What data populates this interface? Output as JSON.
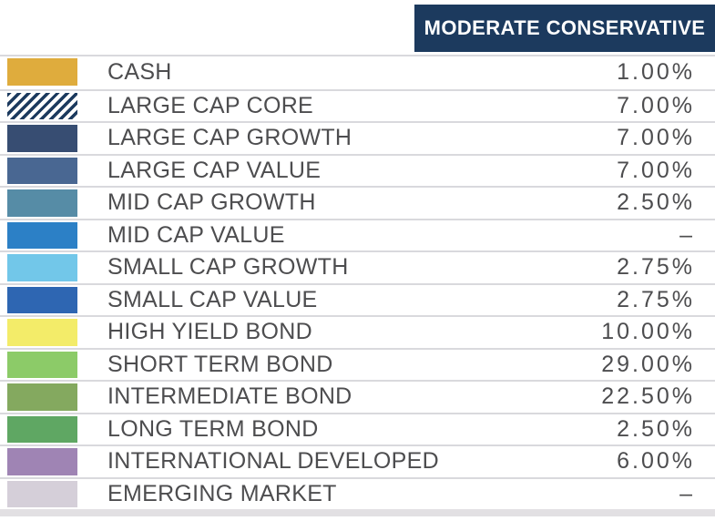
{
  "header": {
    "column_label": "MODERATE CONSERVATIVE"
  },
  "colors": {
    "header_bg": "#1C3A5E",
    "header_text": "#FFFFFF",
    "row_text": "#4D4D4F",
    "separator": "#D9D9DD",
    "bottom_band": "#E2E0E3",
    "hatch_bg": "#FFFFFF"
  },
  "rows": [
    {
      "label": "CASH",
      "value": "1.00%",
      "swatch": {
        "type": "solid",
        "color": "#DFAC3D",
        "name": "gold"
      }
    },
    {
      "label": "LARGE CAP CORE",
      "value": "7.00%",
      "swatch": {
        "type": "hatch",
        "color": "#1C3A5E",
        "name": "navy-diagonal-stripes"
      }
    },
    {
      "label": "LARGE CAP GROWTH",
      "value": "7.00%",
      "swatch": {
        "type": "solid",
        "color": "#374D72",
        "name": "dark-navy"
      }
    },
    {
      "label": "LARGE CAP VALUE",
      "value": "7.00%",
      "swatch": {
        "type": "solid",
        "color": "#496792",
        "name": "slate-blue"
      }
    },
    {
      "label": "MID CAP GROWTH",
      "value": "2.50%",
      "swatch": {
        "type": "solid",
        "color": "#568CA6",
        "name": "steel-blue"
      }
    },
    {
      "label": "MID CAP VALUE",
      "value": "–",
      "swatch": {
        "type": "solid",
        "color": "#2C80C6",
        "name": "bright-blue"
      }
    },
    {
      "label": "SMALL CAP GROWTH",
      "value": "2.75%",
      "swatch": {
        "type": "solid",
        "color": "#72C7E9",
        "name": "sky-blue"
      }
    },
    {
      "label": "SMALL CAP VALUE",
      "value": "2.75%",
      "swatch": {
        "type": "solid",
        "color": "#2E66B2",
        "name": "medium-blue"
      }
    },
    {
      "label": "HIGH YIELD BOND",
      "value": "10.00%",
      "swatch": {
        "type": "solid",
        "color": "#F3EC69",
        "name": "yellow"
      }
    },
    {
      "label": "SHORT TERM BOND",
      "value": "29.00%",
      "swatch": {
        "type": "solid",
        "color": "#8CCB68",
        "name": "light-green"
      }
    },
    {
      "label": "INTERMEDIATE BOND",
      "value": "22.50%",
      "swatch": {
        "type": "solid",
        "color": "#84A95F",
        "name": "olive-green"
      }
    },
    {
      "label": "LONG TERM BOND",
      "value": "2.50%",
      "swatch": {
        "type": "solid",
        "color": "#5FA763",
        "name": "green"
      }
    },
    {
      "label": "INTERNATIONAL DEVELOPED",
      "value": "6.00%",
      "swatch": {
        "type": "solid",
        "color": "#9F84B4",
        "name": "purple"
      }
    },
    {
      "label": "EMERGING MARKET",
      "value": "–",
      "swatch": {
        "type": "solid",
        "color": "#D5CFD9",
        "name": "light-lavender"
      }
    }
  ],
  "chart_data": {
    "type": "table",
    "title": "MODERATE CONSERVATIVE",
    "categories": [
      "CASH",
      "LARGE CAP CORE",
      "LARGE CAP GROWTH",
      "LARGE CAP VALUE",
      "MID CAP GROWTH",
      "MID CAP VALUE",
      "SMALL CAP GROWTH",
      "SMALL CAP VALUE",
      "HIGH YIELD BOND",
      "SHORT TERM BOND",
      "INTERMEDIATE BOND",
      "LONG TERM BOND",
      "INTERNATIONAL DEVELOPED",
      "EMERGING MARKET"
    ],
    "values": [
      1.0,
      7.0,
      7.0,
      7.0,
      2.5,
      null,
      2.75,
      2.75,
      10.0,
      29.0,
      22.5,
      2.5,
      6.0,
      null
    ],
    "value_format": "percent",
    "missing_value_symbol": "–"
  }
}
